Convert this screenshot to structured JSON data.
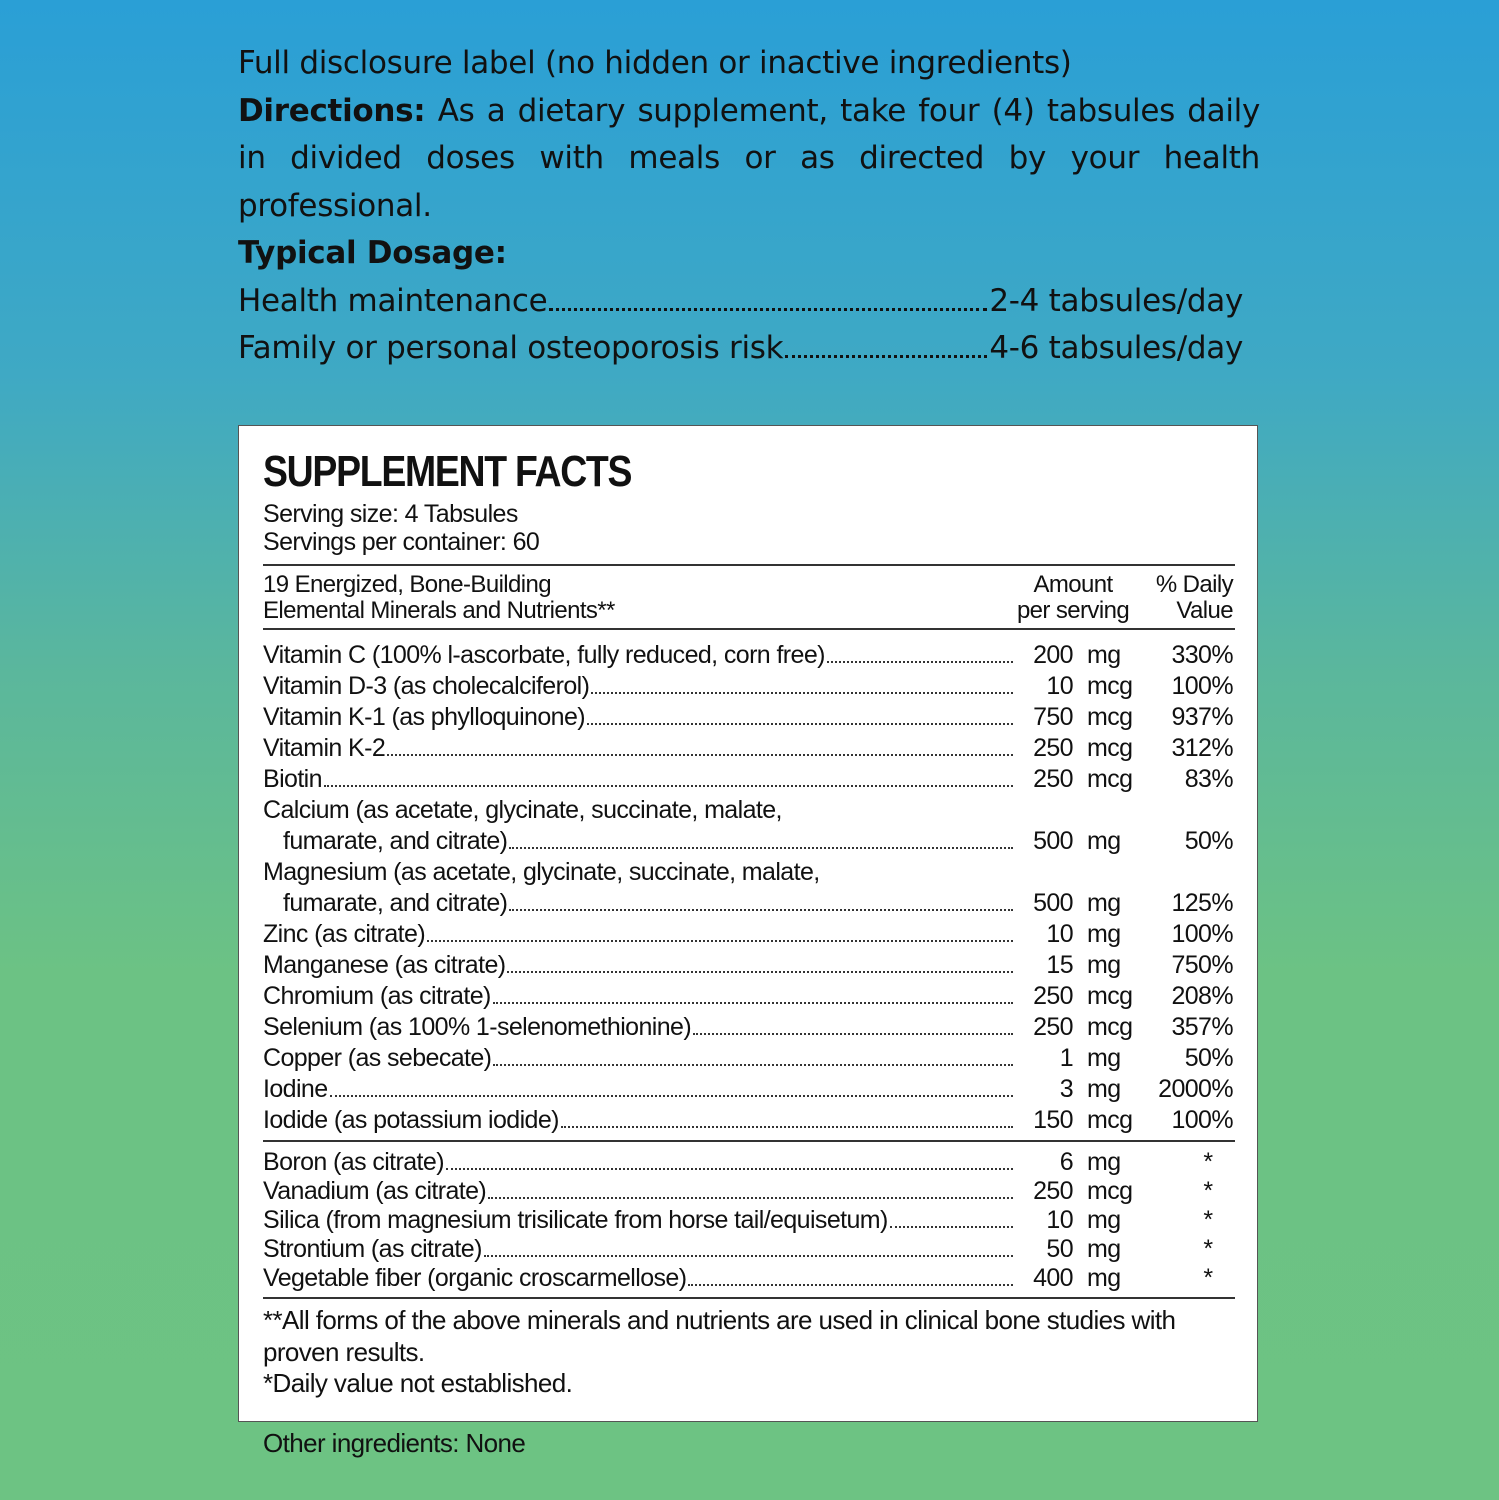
{
  "intro": {
    "disclosure": "Full disclosure label (no hidden or inactive ingredients)",
    "directions_label": "Directions:",
    "directions_text": "As a dietary supplement, take four (4) tabsules daily in divided doses with meals or as directed by your health professional.",
    "dosage_label": "Typical Dosage:",
    "dosages": [
      {
        "label": "Health maintenance",
        "value": "2-4 tabsules/day"
      },
      {
        "label": "Family or personal osteoporosis risk",
        "value": "4-6 tabsules/day"
      }
    ]
  },
  "facts": {
    "title": "SUPPLEMENT FACTS",
    "serving_size": "Serving size: 4 Tabsules",
    "servings_per_container": "Servings per container: 60",
    "header_left_1": "19 Energized, Bone-Building",
    "header_left_2": "Elemental Minerals and Nutrients**",
    "header_amount_1": "Amount",
    "header_amount_2": "per serving",
    "header_dv_1": "% Daily",
    "header_dv_2": "Value",
    "rows": [
      {
        "name": "Vitamin C (100% l-ascorbate, fully reduced, corn free)",
        "amount": "200",
        "unit": "mg",
        "dv": "330%"
      },
      {
        "name": "Vitamin D-3 (as cholecalciferol)",
        "amount": "10",
        "unit": "mcg",
        "dv": "100%"
      },
      {
        "name": "Vitamin K-1 (as phylloquinone)",
        "amount": "750",
        "unit": "mcg",
        "dv": "937%"
      },
      {
        "name": "Vitamin K-2",
        "amount": "250",
        "unit": "mcg",
        "dv": "312%"
      },
      {
        "name": "Biotin",
        "amount": "250",
        "unit": "mcg",
        "dv": "83%"
      },
      {
        "name": "Calcium (as acetate, glycinate, succinate, malate,",
        "cont": "fumarate, and citrate)",
        "amount": "500",
        "unit": "mg",
        "dv": "50%"
      },
      {
        "name": "Magnesium (as acetate, glycinate, succinate, malate,",
        "cont": "fumarate, and citrate)",
        "amount": "500",
        "unit": "mg",
        "dv": "125%"
      },
      {
        "name": "Zinc (as citrate)",
        "amount": "10",
        "unit": "mg",
        "dv": "100%"
      },
      {
        "name": "Manganese (as citrate)",
        "amount": "15",
        "unit": "mg",
        "dv": "750%"
      },
      {
        "name": "Chromium (as citrate)",
        "amount": "250",
        "unit": "mcg",
        "dv": "208%"
      },
      {
        "name": "Selenium (as 100% 1-selenomethionine)",
        "amount": "250",
        "unit": "mcg",
        "dv": "357%"
      },
      {
        "name": "Copper (as sebecate)",
        "amount": "1",
        "unit": "mg",
        "dv": "50%"
      },
      {
        "name": "Iodine",
        "amount": "3",
        "unit": "mg",
        "dv": "2000%"
      },
      {
        "name": "Iodide (as potassium iodide)",
        "amount": "150",
        "unit": "mcg",
        "dv": "100%"
      }
    ],
    "rows2": [
      {
        "name": "Boron (as citrate)",
        "amount": "6",
        "unit": "mg",
        "dv": "*"
      },
      {
        "name": "Vanadium (as citrate)",
        "amount": "250",
        "unit": "mcg",
        "dv": "*"
      },
      {
        "name": "Silica (from magnesium trisilicate from horse tail/equisetum)",
        "amount": "10",
        "unit": "mg",
        "dv": "*"
      },
      {
        "name": "Strontium (as citrate)",
        "amount": "50",
        "unit": "mg",
        "dv": "*"
      },
      {
        "name": "Vegetable fiber (organic croscarmellose)",
        "amount": "400",
        "unit": "mg",
        "dv": "*"
      }
    ],
    "footnote_1": "**All forms of the above minerals and nutrients are used in clinical bone studies with proven results.",
    "footnote_2": "*Daily value not established."
  },
  "other_ingredients": "Other ingredients: None",
  "colors": {
    "gradient_top": "#2a9fd6",
    "gradient_bottom": "#6dc383"
  }
}
